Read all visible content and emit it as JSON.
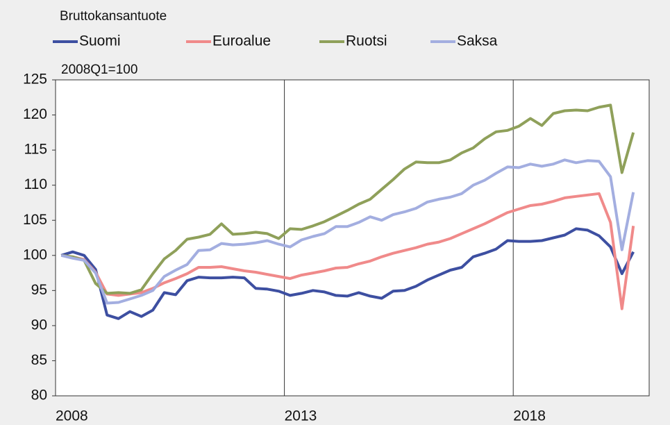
{
  "chart_data": {
    "type": "line",
    "title": "Bruttokansantuote",
    "annotation": "2008Q1=100",
    "categories": [
      "2008",
      null,
      null,
      null,
      null,
      null,
      null,
      null,
      null,
      null,
      null,
      null,
      null,
      null,
      null,
      null,
      null,
      null,
      null,
      null,
      "2013",
      null,
      null,
      null,
      null,
      null,
      null,
      null,
      null,
      null,
      null,
      null,
      null,
      null,
      null,
      null,
      null,
      null,
      null,
      null,
      "2018",
      null,
      null,
      null,
      null,
      null,
      null,
      null,
      null,
      null,
      null
    ],
    "series": [
      {
        "name": "Suomi",
        "color": "#3d4fa1",
        "values": [
          100,
          100.5,
          100,
          98,
          91.5,
          91,
          92,
          91.3,
          92.2,
          94.7,
          94.4,
          96.4,
          96.9,
          96.8,
          96.8,
          96.9,
          96.8,
          95.3,
          95.2,
          94.9,
          94.3,
          94.6,
          95,
          94.8,
          94.3,
          94.2,
          94.7,
          94.2,
          93.9,
          94.9,
          95,
          95.6,
          96.5,
          97.2,
          97.9,
          98.3,
          99.8,
          100.3,
          100.9,
          102.1,
          102,
          102,
          102.1,
          102.5,
          102.9,
          103.8,
          103.6,
          102.8,
          101.2,
          97.4,
          100.5
        ]
      },
      {
        "name": "Euroalue",
        "color": "#f08a8a",
        "values": [
          100,
          99.8,
          99.4,
          97.6,
          94.5,
          94.3,
          94.5,
          94.7,
          95.3,
          96.1,
          96.7,
          97.4,
          98.3,
          98.3,
          98.4,
          98.1,
          97.8,
          97.6,
          97.3,
          97,
          96.7,
          97.2,
          97.5,
          97.8,
          98.2,
          98.3,
          98.8,
          99.2,
          99.8,
          100.3,
          100.7,
          101.1,
          101.6,
          101.9,
          102.4,
          103.1,
          103.8,
          104.5,
          105.3,
          106.1,
          106.6,
          107.1,
          107.3,
          107.7,
          108.2,
          108.4,
          108.6,
          108.8,
          104.7,
          92.4,
          104.2
        ]
      },
      {
        "name": "Ruotsi",
        "color": "#8fa05a",
        "values": [
          100,
          99.8,
          99.3,
          96,
          94.6,
          94.7,
          94.6,
          95.1,
          97.4,
          99.5,
          100.7,
          102.3,
          102.6,
          103,
          104.5,
          103,
          103.1,
          103.3,
          103.1,
          102.4,
          103.8,
          103.7,
          104.2,
          104.8,
          105.6,
          106.4,
          107.3,
          108,
          109.4,
          110.8,
          112.3,
          113.3,
          113.2,
          113.2,
          113.6,
          114.6,
          115.3,
          116.6,
          117.6,
          117.8,
          118.4,
          119.5,
          118.5,
          120.2,
          120.6,
          120.7,
          120.6,
          121.1,
          121.4,
          111.8,
          117.5
        ]
      },
      {
        "name": "Saksa",
        "color": "#a3aee0",
        "values": [
          100,
          99.6,
          99.3,
          97.5,
          93.2,
          93.3,
          93.8,
          94.3,
          95,
          97,
          97.9,
          98.7,
          100.7,
          100.8,
          101.7,
          101.5,
          101.6,
          101.8,
          102.1,
          101.6,
          101.2,
          102.2,
          102.7,
          103.1,
          104.1,
          104.1,
          104.7,
          105.5,
          105,
          105.8,
          106.2,
          106.7,
          107.6,
          108,
          108.3,
          108.8,
          110,
          110.7,
          111.7,
          112.6,
          112.5,
          113,
          112.7,
          113,
          113.6,
          113.2,
          113.5,
          113.4,
          111.2,
          100.8,
          109
        ]
      }
    ],
    "ylim": [
      80,
      125
    ],
    "yticks": [
      80,
      85,
      90,
      95,
      100,
      105,
      110,
      115,
      120,
      125
    ],
    "grid": "x"
  }
}
